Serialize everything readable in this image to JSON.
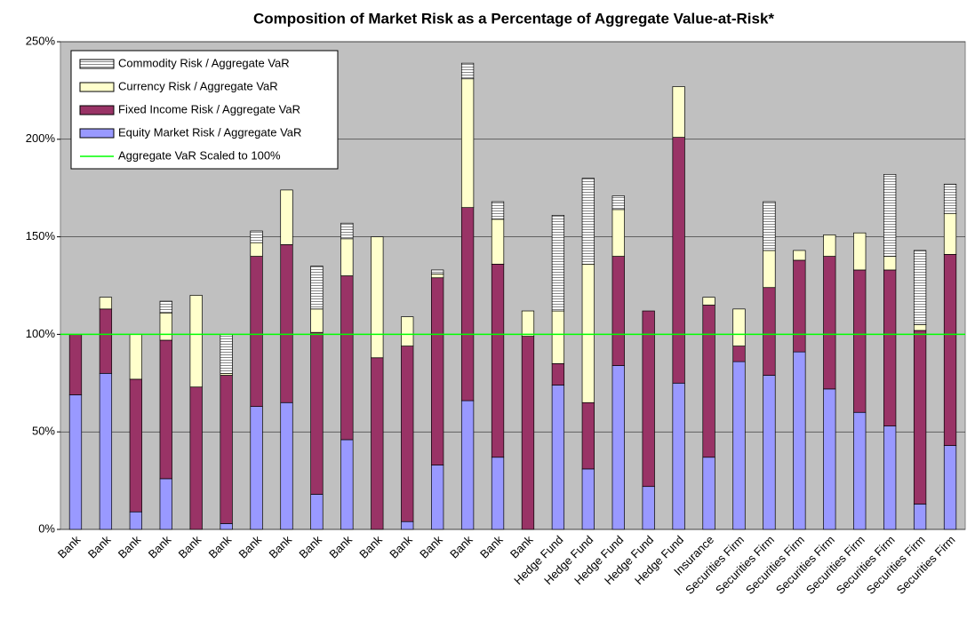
{
  "chart_data": {
    "type": "stacked_bar",
    "title": "Composition of Market Risk as a Percentage of Aggregate Value-at-Risk*",
    "categories": [
      "Bank",
      "Bank",
      "Bank",
      "Bank",
      "Bank",
      "Bank",
      "Bank",
      "Bank",
      "Bank",
      "Bank",
      "Bank",
      "Bank",
      "Bank",
      "Bank",
      "Bank",
      "Bank",
      "Hedge Fund",
      "Hedge Fund",
      "Hedge Fund",
      "Hedge Fund",
      "Hedge Fund",
      "Insurance",
      "Securities Firm",
      "Securities Firm",
      "Securities Firm",
      "Securities Firm",
      "Securities Firm",
      "Securities Firm",
      "Securities Firm",
      "Securities Firm"
    ],
    "series": [
      {
        "name": "Equity Market Risk / Aggregate VaR",
        "color": "#9999ff",
        "values": [
          69,
          80,
          9,
          26,
          0,
          3,
          63,
          65,
          18,
          46,
          0,
          4,
          33,
          66,
          37,
          0,
          74,
          31,
          84,
          22,
          75,
          37,
          86,
          79,
          91,
          72,
          60,
          53,
          13,
          43
        ]
      },
      {
        "name": "Fixed Income Risk / Aggregate VaR",
        "color": "#993366",
        "values": [
          31,
          33,
          68,
          71,
          73,
          76,
          77,
          81,
          83,
          84,
          88,
          90,
          96,
          99,
          99,
          99,
          11,
          34,
          56,
          90,
          126,
          78,
          8,
          45,
          47,
          68,
          73,
          80,
          89,
          98
        ]
      },
      {
        "name": "Currency Risk / Aggregate VaR",
        "color": "#ffffcc",
        "values": [
          0,
          6,
          23,
          14,
          47,
          1,
          7,
          28,
          12,
          19,
          62,
          15,
          2,
          66,
          23,
          13,
          27,
          71,
          24,
          0,
          26,
          4,
          19,
          19,
          5,
          11,
          19,
          7,
          3,
          21
        ]
      },
      {
        "name": "Commodity Risk / Aggregate VaR",
        "color": "#ffffff",
        "pattern": "horizontal-hatch",
        "values": [
          0,
          0,
          0,
          6,
          0,
          20,
          6,
          0,
          22,
          8,
          0,
          0,
          2,
          8,
          9,
          0,
          49,
          44,
          7,
          0,
          0,
          0,
          0,
          25,
          0,
          0,
          0,
          42,
          38,
          15
        ]
      }
    ],
    "reference_line": {
      "name": "Aggregate VaR Scaled to 100%",
      "color": "#00ff00",
      "value": 100
    },
    "ylim": [
      0,
      250
    ],
    "yticks": [
      {
        "value": 0,
        "label": "0%"
      },
      {
        "value": 50,
        "label": "50%"
      },
      {
        "value": 100,
        "label": "100%"
      },
      {
        "value": 150,
        "label": "150%"
      },
      {
        "value": 200,
        "label": "200%"
      },
      {
        "value": 250,
        "label": "250%"
      }
    ],
    "grid": true,
    "legend": "upper left"
  }
}
